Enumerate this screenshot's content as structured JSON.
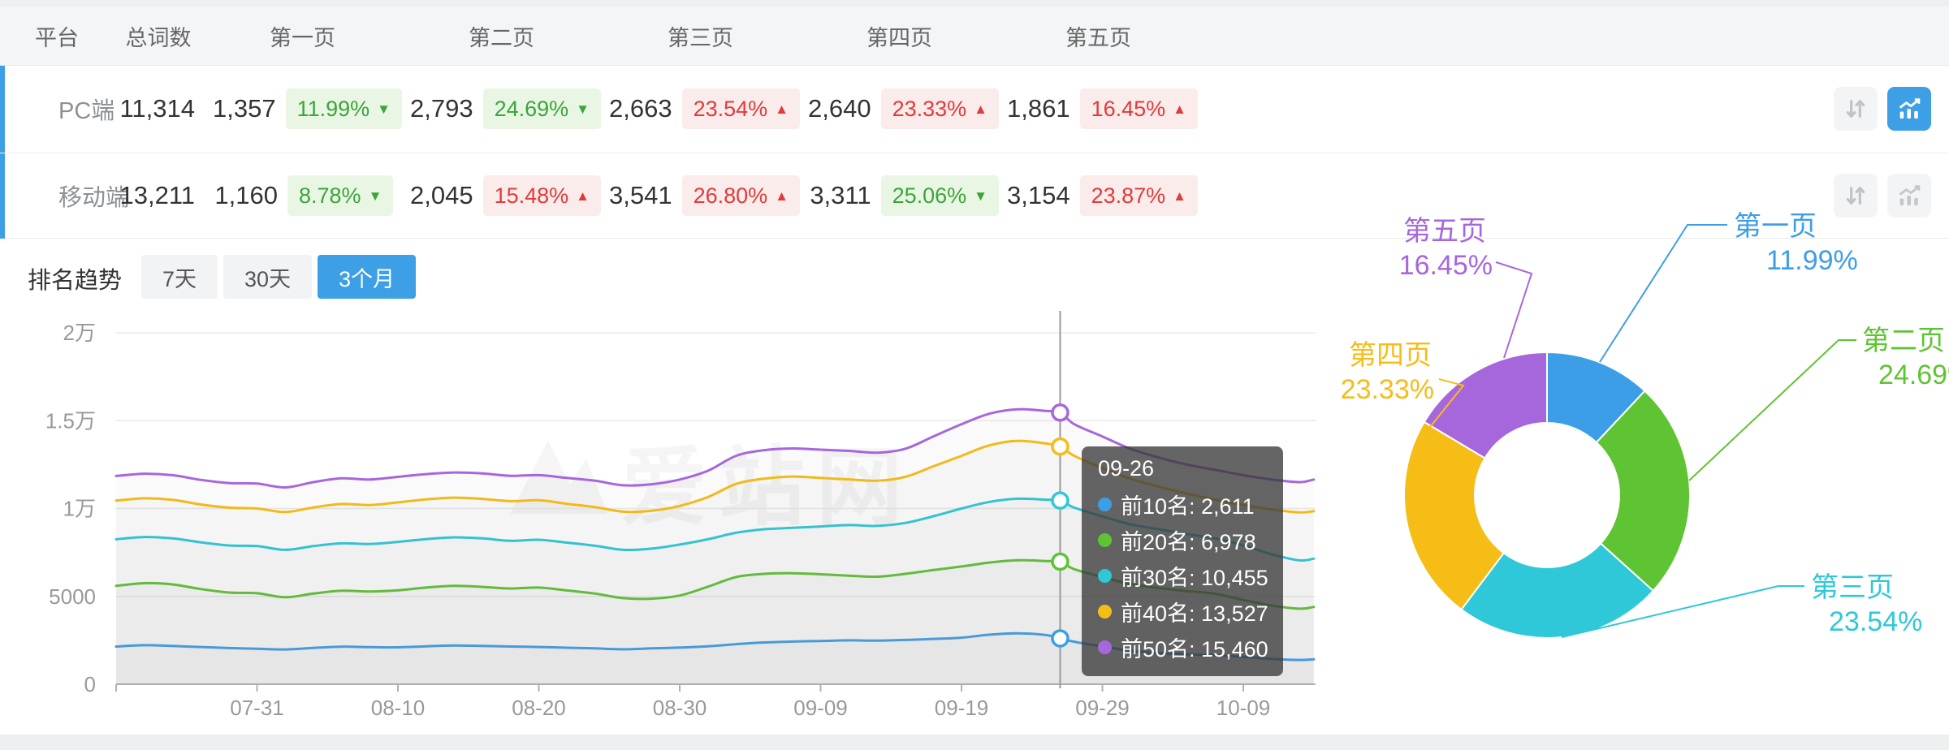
{
  "colors": {
    "accent_blue": "#3D9FE6",
    "up_red": "#E23A3A",
    "up_red_bg": "#FBECEC",
    "down_green": "#3BA53B",
    "down_green_bg": "#E9F6E4",
    "axis_text": "#999999",
    "grid_line": "#EAEAEA",
    "series": [
      "#3D9EE8",
      "#5FC433",
      "#2EC8D8",
      "#F6BD16",
      "#A767DC"
    ]
  },
  "table": {
    "headers": [
      "平台",
      "总词数",
      "第一页",
      "第二页",
      "第三页",
      "第四页",
      "第五页"
    ],
    "rows": [
      {
        "platform": "PC端",
        "total": "11,314",
        "chart_active": true,
        "pages": [
          {
            "count": "1,357",
            "pct": "11.99%",
            "dir": "down"
          },
          {
            "count": "2,793",
            "pct": "24.69%",
            "dir": "down"
          },
          {
            "count": "2,663",
            "pct": "23.54%",
            "dir": "up"
          },
          {
            "count": "2,640",
            "pct": "23.33%",
            "dir": "up"
          },
          {
            "count": "1,861",
            "pct": "16.45%",
            "dir": "up"
          }
        ]
      },
      {
        "platform": "移动端",
        "total": "13,211",
        "chart_active": false,
        "pages": [
          {
            "count": "1,160",
            "pct": "8.78%",
            "dir": "down"
          },
          {
            "count": "2,045",
            "pct": "15.48%",
            "dir": "up"
          },
          {
            "count": "3,541",
            "pct": "26.80%",
            "dir": "up"
          },
          {
            "count": "3,311",
            "pct": "25.06%",
            "dir": "down"
          },
          {
            "count": "3,154",
            "pct": "23.87%",
            "dir": "up"
          }
        ]
      }
    ],
    "action_icons": [
      "sort-arrows-icon",
      "trend-chart-icon"
    ]
  },
  "trend": {
    "title": "排名趋势",
    "tabs": [
      {
        "label": "7天",
        "active": false
      },
      {
        "label": "30天",
        "active": false
      },
      {
        "label": "3个月",
        "active": true
      }
    ]
  },
  "tooltip": {
    "title": "09-26",
    "items": [
      {
        "name": "前10名",
        "value": "2,611",
        "color": "#3D9EE8"
      },
      {
        "name": "前20名",
        "value": "6,978",
        "color": "#5FC433"
      },
      {
        "name": "前30名",
        "value": "10,455",
        "color": "#2EC8D8"
      },
      {
        "name": "前40名",
        "value": "13,527",
        "color": "#F6BD16"
      },
      {
        "name": "前50名",
        "value": "15,460",
        "color": "#A767DC"
      }
    ]
  },
  "watermark": {
    "text": "爱站网"
  },
  "chart_data": [
    {
      "type": "line",
      "title": "排名趋势（3个月）",
      "ylim": [
        0,
        20000
      ],
      "grid": true,
      "legend_position": "none (values shown in hover tooltip)",
      "y_ticks": [
        {
          "v": 0,
          "label": "0"
        },
        {
          "v": 5000,
          "label": "5000"
        },
        {
          "v": 10000,
          "label": "1万"
        },
        {
          "v": 15000,
          "label": "1.5万"
        },
        {
          "v": 20000,
          "label": "2万"
        }
      ],
      "x_ticks": [
        "07-31",
        "08-10",
        "08-20",
        "08-30",
        "09-09",
        "09-19",
        "09-29",
        "10-09"
      ],
      "crosshair_date": "09-26",
      "dates": [
        "07-21",
        "07-23",
        "07-25",
        "07-27",
        "07-29",
        "07-31",
        "08-02",
        "08-04",
        "08-06",
        "08-08",
        "08-10",
        "08-12",
        "08-14",
        "08-16",
        "08-18",
        "08-20",
        "08-22",
        "08-24",
        "08-26",
        "08-28",
        "08-30",
        "09-01",
        "09-03",
        "09-05",
        "09-07",
        "09-09",
        "09-11",
        "09-13",
        "09-15",
        "09-17",
        "09-19",
        "09-21",
        "09-23",
        "09-25",
        "09-26",
        "09-27",
        "09-29",
        "10-01",
        "10-03",
        "10-05",
        "10-07",
        "10-09",
        "10-11",
        "10-13",
        "10-14"
      ],
      "series": [
        {
          "name": "前10名",
          "color": "#3D9EE8",
          "values": [
            2150,
            2220,
            2180,
            2120,
            2060,
            2020,
            1980,
            2070,
            2140,
            2110,
            2100,
            2160,
            2210,
            2180,
            2150,
            2120,
            2080,
            2040,
            1990,
            2040,
            2090,
            2160,
            2280,
            2380,
            2430,
            2460,
            2500,
            2480,
            2520,
            2580,
            2650,
            2820,
            2900,
            2800,
            2611,
            2420,
            2150,
            1900,
            1780,
            1700,
            1650,
            1560,
            1440,
            1380,
            1420
          ]
        },
        {
          "name": "前20名",
          "color": "#5FC433",
          "values": [
            5600,
            5750,
            5680,
            5420,
            5220,
            5180,
            4950,
            5160,
            5320,
            5280,
            5350,
            5500,
            5600,
            5540,
            5450,
            5500,
            5340,
            5160,
            4900,
            4870,
            5050,
            5550,
            6100,
            6280,
            6320,
            6260,
            6180,
            6120,
            6280,
            6500,
            6700,
            6930,
            7060,
            7010,
            6978,
            6550,
            6100,
            5700,
            5480,
            5300,
            5150,
            4800,
            4480,
            4300,
            4400
          ]
        },
        {
          "name": "前30名",
          "color": "#2EC8D8",
          "values": [
            8250,
            8380,
            8300,
            8080,
            7900,
            7860,
            7650,
            7860,
            8020,
            7980,
            8100,
            8260,
            8360,
            8300,
            8160,
            8220,
            8060,
            7880,
            7650,
            7720,
            7950,
            8250,
            8620,
            8820,
            8900,
            8980,
            9060,
            9010,
            9180,
            9560,
            10000,
            10380,
            10560,
            10500,
            10455,
            10050,
            9550,
            9100,
            8820,
            8550,
            8300,
            7900,
            7400,
            7050,
            7150
          ]
        },
        {
          "name": "前40名",
          "color": "#F6BD16",
          "values": [
            10450,
            10580,
            10500,
            10230,
            10050,
            10000,
            9800,
            10060,
            10260,
            10200,
            10350,
            10520,
            10620,
            10550,
            10420,
            10470,
            10270,
            10080,
            9820,
            9870,
            10150,
            10650,
            11400,
            11700,
            11820,
            11740,
            11660,
            11580,
            11800,
            12400,
            13000,
            13600,
            13850,
            13700,
            13527,
            13000,
            12300,
            11700,
            11250,
            10850,
            10500,
            10200,
            9950,
            9780,
            9850
          ]
        },
        {
          "name": "前50名",
          "color": "#A767DC",
          "values": [
            11850,
            11980,
            11900,
            11630,
            11450,
            11420,
            11200,
            11500,
            11720,
            11650,
            11800,
            11960,
            12050,
            12000,
            11860,
            11900,
            11740,
            11580,
            11320,
            11380,
            11650,
            12150,
            13000,
            13320,
            13420,
            13350,
            13280,
            13180,
            13400,
            14100,
            14800,
            15400,
            15650,
            15550,
            15460,
            14800,
            14100,
            13400,
            12900,
            12500,
            12200,
            11900,
            11650,
            11500,
            11650
          ]
        }
      ]
    },
    {
      "type": "pie",
      "donut": true,
      "labels": [
        "第一页",
        "第二页",
        "第三页",
        "第四页",
        "第五页"
      ],
      "values": [
        11.99,
        24.69,
        23.54,
        23.33,
        16.45
      ],
      "unit": "%",
      "colors": [
        "#3D9EE8",
        "#5FC433",
        "#2EC8D8",
        "#F6BD16",
        "#A767DC"
      ]
    }
  ]
}
